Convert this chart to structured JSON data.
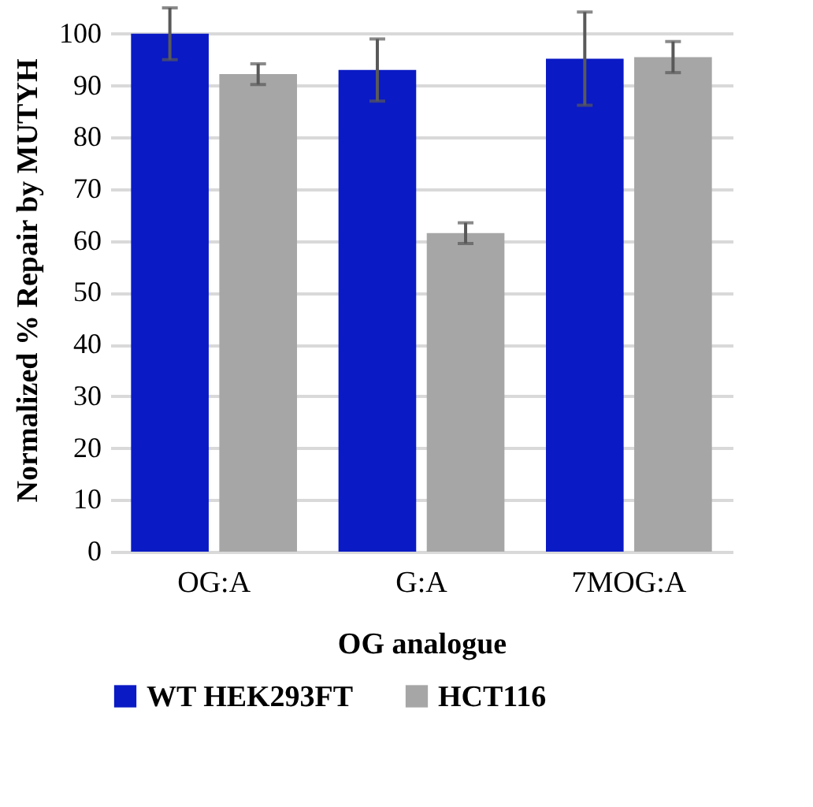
{
  "chart_data": {
    "type": "bar",
    "xlabel": "OG analogue",
    "ylabel": "Normalized % Repair by MUTYH",
    "categories": [
      "OG:A",
      "G:A",
      "7MOG:A"
    ],
    "series": [
      {
        "name": "WT HEK293FT",
        "color": "#0a1ac4",
        "values": [
          100,
          93,
          95.2
        ],
        "errors": [
          5,
          6,
          9
        ]
      },
      {
        "name": "HCT116",
        "color": "#a6a6a6",
        "values": [
          92.2,
          61.5,
          95.5
        ],
        "errors": [
          2,
          2,
          3
        ]
      }
    ],
    "ylim": [
      0,
      105
    ],
    "yticks": [
      0,
      10,
      20,
      30,
      40,
      50,
      60,
      70,
      80,
      90,
      100
    ],
    "grid": "y",
    "legend": "bottom"
  }
}
